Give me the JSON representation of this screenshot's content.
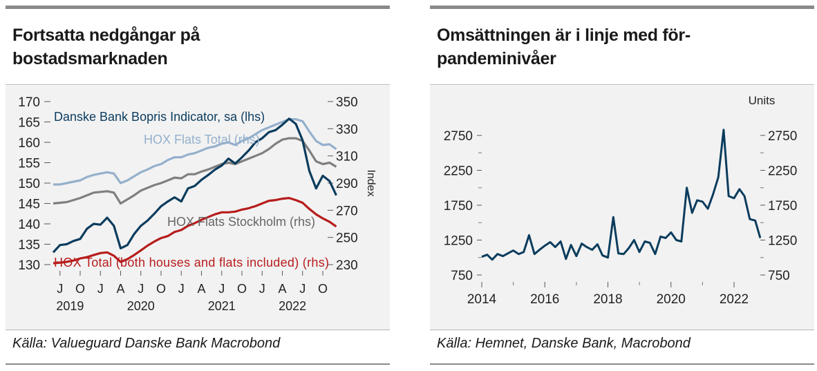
{
  "colors": {
    "danske": "#0b3c5d",
    "hox_flats_total": "#94b0cc",
    "hox_flats_sthlm": "#7f7f7f",
    "hox_total": "#b71c1c",
    "turnover": "#0b3c5d",
    "panel_bg": "#f2f2f2",
    "bar": "#8a8a8a"
  },
  "left": {
    "title_line1": "Fortsatta nedgångar på",
    "title_line2": "bostadsmarknaden",
    "source": "Källa: Valueguard Danske Bank Macrobond"
  },
  "right": {
    "title_line1": "Omsättningen är i linje med för-",
    "title_line2": "pandeminivåer",
    "source": "Källa: Hemnet, Danske Bank, Macrobond"
  },
  "chart_data": [
    {
      "type": "line",
      "x_axis": {
        "month_ticks": [
          "J",
          "O",
          "J",
          "A",
          "J",
          "O",
          "J",
          "A",
          "J",
          "O",
          "J",
          "A",
          "J",
          "O"
        ],
        "year_labels": [
          {
            "label": "2019",
            "index": 0.5
          },
          {
            "label": "2020",
            "index": 4.0
          },
          {
            "label": "2021",
            "index": 8.0
          },
          {
            "label": "2022",
            "index": 11.5
          }
        ],
        "months_from": "2019-06",
        "months_to": "2022-11"
      },
      "y_left": {
        "ylim": [
          130,
          170
        ],
        "ticks": [
          130,
          135,
          140,
          145,
          150,
          155,
          160,
          165,
          170
        ]
      },
      "y_right": {
        "ylim": [
          230,
          350
        ],
        "ticks": [
          230,
          250,
          270,
          290,
          310,
          330,
          350
        ],
        "label": "Index"
      },
      "series": [
        {
          "name": "Danske Bank Bopris Indicator, sa (lhs)",
          "axis": "left",
          "values": [
            133.0,
            134.8,
            135.0,
            135.8,
            136.3,
            138.8,
            140.0,
            139.8,
            141.5,
            139.5,
            134.0,
            134.8,
            137.5,
            139.5,
            140.8,
            142.5,
            144.3,
            145.5,
            146.5,
            145.5,
            148.7,
            149.3,
            150.8,
            152.0,
            153.3,
            154.3,
            156.0,
            154.8,
            156.3,
            158.0,
            160.0,
            161.0,
            162.5,
            163.0,
            164.3,
            165.8,
            164.5,
            160.5,
            153.0,
            148.7,
            151.8,
            150.5,
            147.0
          ]
        },
        {
          "name": "HOX Flats Total (rhs)",
          "axis": "right",
          "values": [
            289.0,
            289.0,
            290.0,
            291.0,
            292.0,
            294.5,
            296.0,
            297.0,
            298.0,
            297.0,
            290.0,
            292.0,
            295.0,
            298.0,
            300.0,
            302.5,
            304.0,
            307.0,
            309.0,
            309.0,
            311.0,
            312.0,
            314.0,
            316.0,
            317.0,
            319.0,
            320.0,
            318.0,
            321.0,
            323.0,
            326.0,
            329.0,
            331.0,
            333.0,
            335.0,
            337.0,
            337.0,
            335.5,
            328.0,
            321.0,
            318.0,
            318.5,
            315.0
          ]
        },
        {
          "name": "HOX Flats Stockholm (rhs)",
          "axis": "right",
          "values": [
            275.0,
            275.5,
            276.0,
            277.5,
            279.0,
            281.0,
            283.0,
            283.5,
            284.0,
            283.0,
            275.0,
            278.0,
            281.0,
            284.5,
            286.5,
            288.5,
            290.0,
            292.0,
            294.0,
            293.5,
            296.5,
            296.5,
            298.5,
            300.0,
            302.0,
            304.0,
            305.0,
            304.0,
            306.0,
            308.0,
            310.0,
            312.0,
            315.0,
            319.0,
            322.0,
            323.0,
            323.0,
            321.0,
            314.0,
            306.0,
            304.0,
            305.0,
            302.0
          ]
        },
        {
          "name": "HOX Total (both houses and flats included) (rhs)",
          "axis": "right",
          "values": [
            231.0,
            231.5,
            232.0,
            233.0,
            234.5,
            235.5,
            237.0,
            238.5,
            239.0,
            236.5,
            232.0,
            234.0,
            237.0,
            240.5,
            244.0,
            247.0,
            249.5,
            251.0,
            254.0,
            255.5,
            258.5,
            260.5,
            263.0,
            265.0,
            267.0,
            268.5,
            268.5,
            269.0,
            270.5,
            271.5,
            273.0,
            275.0,
            277.0,
            277.5,
            278.5,
            279.0,
            277.5,
            275.5,
            271.0,
            267.0,
            264.0,
            261.5,
            258.0
          ]
        }
      ],
      "annotations": [
        {
          "text": "Danske Bank Bopris Indicator, sa (lhs)",
          "series": 0
        },
        {
          "text": "HOX Flats Total (rhs)",
          "series": 1
        },
        {
          "text": "HOX Flats Stockholm (rhs)",
          "series": 2
        },
        {
          "text": "HOX Total (both houses and flats included) (rhs)",
          "series": 3
        }
      ]
    },
    {
      "type": "line",
      "x_axis": {
        "ticks": [
          2014,
          2016,
          2018,
          2020,
          2022
        ],
        "xlim": [
          2014,
          2023
        ]
      },
      "y_left": {
        "ticks": [
          750,
          1250,
          1750,
          2250,
          2750
        ],
        "ylim": [
          700,
          2950
        ]
      },
      "y_right": {
        "ticks": [
          750,
          1250,
          1750,
          2250,
          2750
        ],
        "ylim": [
          700,
          2950
        ],
        "label": "Units"
      },
      "series": [
        {
          "x": [
            2014.0,
            2014.17,
            2014.33,
            2014.5,
            2014.67,
            2014.83,
            2015.0,
            2015.17,
            2015.33,
            2015.5,
            2015.67,
            2015.83,
            2016.0,
            2016.17,
            2016.33,
            2016.5,
            2016.67,
            2016.83,
            2017.0,
            2017.17,
            2017.33,
            2017.5,
            2017.67,
            2017.83,
            2018.0,
            2018.17,
            2018.33,
            2018.5,
            2018.67,
            2018.83,
            2019.0,
            2019.17,
            2019.33,
            2019.5,
            2019.67,
            2019.83,
            2020.0,
            2020.17,
            2020.33,
            2020.5,
            2020.67,
            2020.83,
            2021.0,
            2021.17,
            2021.33,
            2021.5,
            2021.67,
            2021.83,
            2022.0,
            2022.17,
            2022.33,
            2022.5,
            2022.67,
            2022.83
          ],
          "values": [
            1010,
            1040,
            970,
            1050,
            1020,
            1060,
            1100,
            1050,
            1080,
            1320,
            1050,
            1110,
            1170,
            1220,
            1150,
            1230,
            980,
            1180,
            1020,
            1200,
            1150,
            1110,
            1190,
            1030,
            1000,
            1580,
            1060,
            1050,
            1140,
            1250,
            1080,
            1230,
            1210,
            1050,
            1300,
            1280,
            1360,
            1250,
            1230,
            2000,
            1640,
            1820,
            1800,
            1700,
            1900,
            2150,
            2830,
            1880,
            1850,
            1980,
            1880,
            1550,
            1530,
            1280
          ]
        }
      ]
    }
  ]
}
